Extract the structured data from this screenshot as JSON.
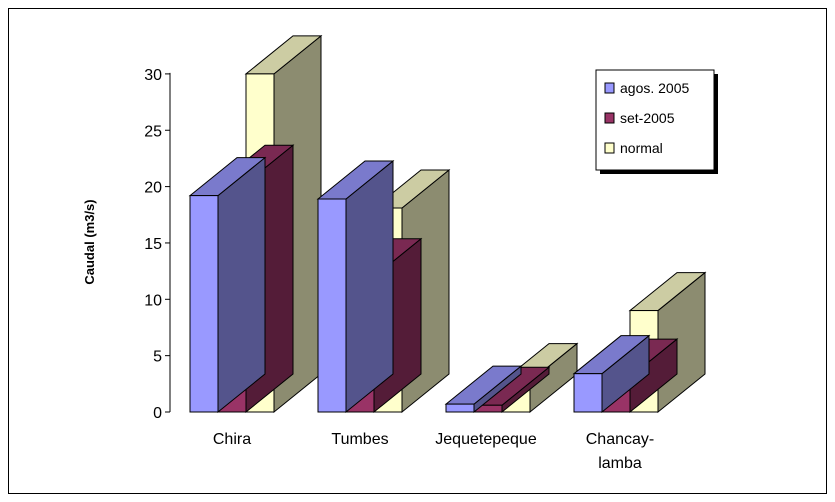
{
  "chart_data": {
    "type": "bar",
    "ylabel": "Caudal (m3/s)",
    "ylim": [
      0,
      30
    ],
    "yticks": [
      "0",
      "5",
      "10",
      "15",
      "20",
      "25",
      "30"
    ],
    "categories": [
      [
        "Chira"
      ],
      [
        "Tumbes"
      ],
      [
        "Jequetepeque"
      ],
      [
        "Chancay-",
        "lamba"
      ]
    ],
    "series": [
      {
        "name": "agos. 2005",
        "color": "#9999ff",
        "values": [
          19.2,
          18.9,
          0.7,
          3.4
        ]
      },
      {
        "name": "set-2005",
        "color": "#993366",
        "values": [
          20.3,
          12.0,
          0.6,
          3.1
        ]
      },
      {
        "name": "normal",
        "color": "#ffffcc",
        "values": [
          30.0,
          18.1,
          2.7,
          9.0
        ]
      }
    ],
    "legend_position": "top-right",
    "style": "3d-clustered-column"
  }
}
